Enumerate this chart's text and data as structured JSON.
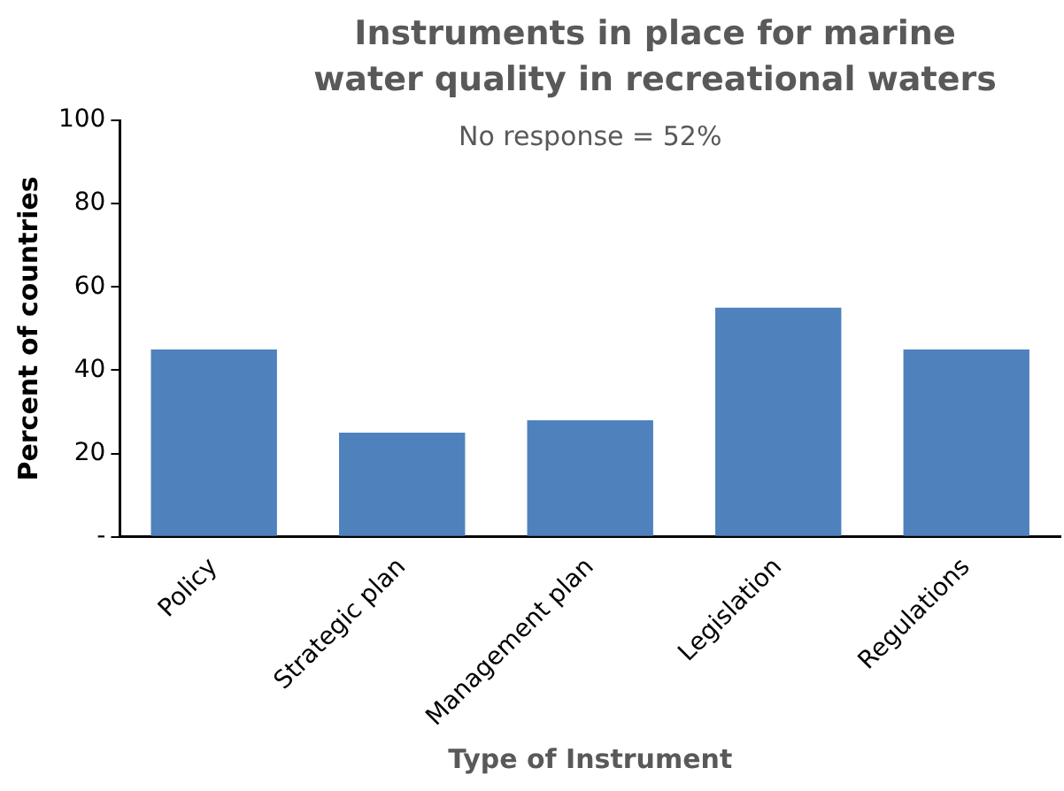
{
  "chart_data": {
    "type": "bar",
    "title": "Instruments in place for marine water quality in recreational waters",
    "subtitle": "No response = 52%",
    "xlabel": "Type of Instrument",
    "ylabel": "Percent of countries",
    "categories": [
      "Policy",
      "Strategic plan",
      "Management plan",
      "Legislation",
      "Regulations"
    ],
    "values": [
      45,
      25,
      28,
      55,
      45
    ],
    "color": "#4f81bd",
    "ylim": [
      0,
      100
    ],
    "yticks": [
      {
        "value": 0,
        "label": "-"
      },
      20,
      40,
      60,
      80,
      100
    ],
    "grid": false,
    "legend": false
  }
}
